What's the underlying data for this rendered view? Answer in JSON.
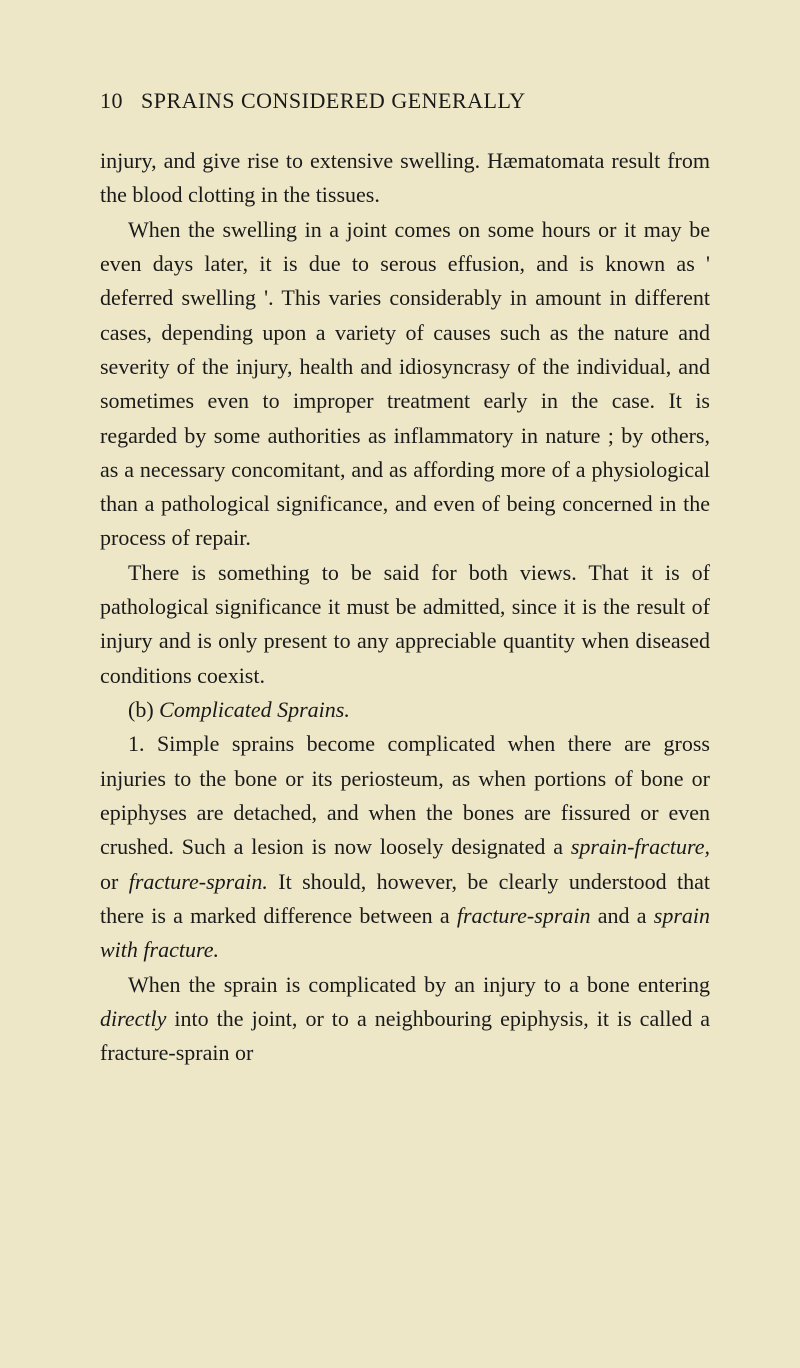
{
  "page": {
    "number": "10",
    "header": "SPRAINS CONSIDERED GENERALLY"
  },
  "paragraphs": {
    "p1_part1": "injury, and give rise to extensive swelling. Hæmato­mata result from the blood clotting in the tissues.",
    "p2": "When the swelling in a joint comes on some hours or it may be even days later, it is due to serous effusion, and is known as ' deferred swelling '. This varies considerably in amount in different cases, depending upon a variety of causes such as the nature and severity of the injury, health and idio­syncrasy of the individual, and sometimes even to improper treatment early in the case. It is regarded by some authorities as inflammatory in nature ; by others, as a necessary concomitant, and as afford­ing more of a physiological than a pathological significance, and even of being concerned in the process of repair.",
    "p3": "There is something to be said for both views. That it is of pathological significance it must be admitted, since it is the result of injury and is only present to any appreciable quantity when diseased conditions coexist.",
    "p4_label": "(b)",
    "p4_italic": " Complicated Sprains.",
    "p5_start": "1. Simple sprains become complicated when there are gross injuries to the bone or its periosteum, as when portions of bone or epiphyses are detached, and when the bones are fissured or even crushed. Such a lesion is now loosely designated a ",
    "p5_i1": "sprain-fracture,",
    "p5_mid1": " or ",
    "p5_i2": "fracture-sprain.",
    "p5_mid2": " It should, however, be clearly understood that there is a marked differ­ence between a ",
    "p5_i3": "fracture-sprain",
    "p5_mid3": " and a ",
    "p5_i4": "sprain with fracture.",
    "p6_start": "When the sprain is complicated by an injury to a bone entering ",
    "p6_i1": "directly",
    "p6_end": " into the joint, or to a neigh­bouring epiphysis, it is called a fracture-sprain or"
  },
  "colors": {
    "background": "#ede7c7",
    "text": "#1a1a1a"
  },
  "typography": {
    "body_fontsize": 22,
    "header_fontsize": 22,
    "line_height": 1.56,
    "font_family": "Georgia, serif"
  }
}
